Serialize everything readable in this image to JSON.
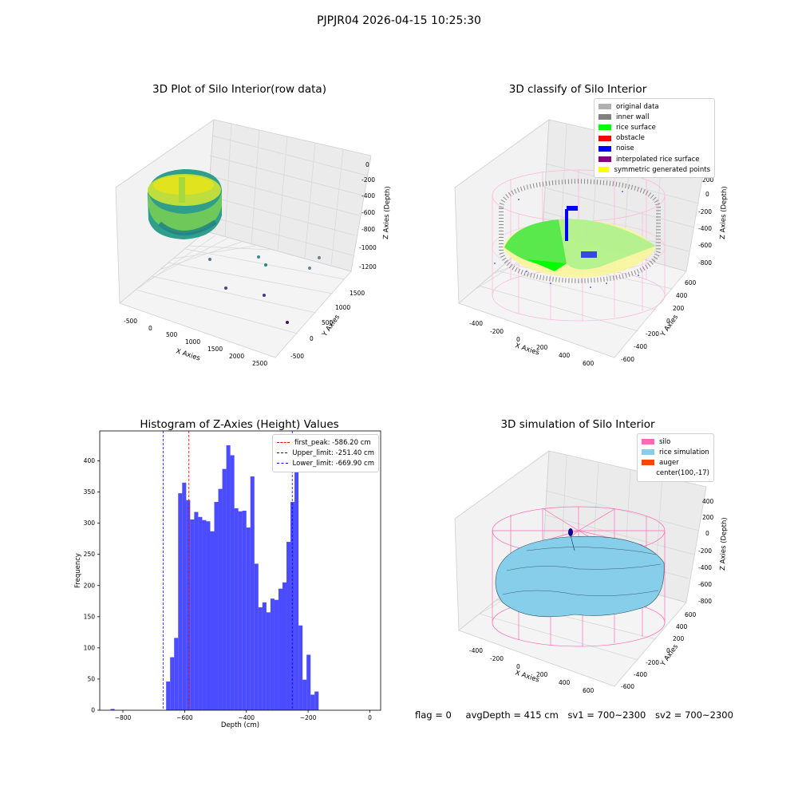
{
  "figure": {
    "suptitle": "PJPJR04 2026-04-15 10:25:30"
  },
  "panels": {
    "raw": {
      "title": "3D Plot of Silo Interior(row data)",
      "xlabel": "X Axies",
      "ylabel": "Y Axies",
      "zlabel": "Z Axies (Depth)",
      "xticks": [
        "-500",
        "0",
        "500",
        "1000",
        "1500",
        "2000",
        "2500"
      ],
      "yticks": [
        "-500",
        "0",
        "500",
        "1000",
        "1500"
      ],
      "zticks": [
        "0",
        "-200",
        "-400",
        "-600",
        "-800",
        "-1000",
        "-1200"
      ]
    },
    "classify": {
      "title": "3D classify of Silo Interior",
      "xlabel": "X Axies",
      "ylabel": "Y Axies",
      "zlabel": "Z Axies (Depth)",
      "xticks": [
        "-400",
        "-200",
        "0",
        "200",
        "400",
        "600"
      ],
      "yticks": [
        "-600",
        "-400",
        "-200",
        "0",
        "200",
        "400",
        "600"
      ],
      "zticks": [
        "200",
        "0",
        "-200",
        "-400",
        "-600",
        "-800"
      ],
      "legend": [
        {
          "label": "original data",
          "color": "#b0b0b0"
        },
        {
          "label": "inner wall",
          "color": "#808080"
        },
        {
          "label": "rice surface",
          "color": "#00ff00"
        },
        {
          "label": "obstacle",
          "color": "#ff0000"
        },
        {
          "label": "noise",
          "color": "#0000ff"
        },
        {
          "label": "interpolated rice surface",
          "color": "#800080"
        },
        {
          "label": "symmetric generated points",
          "color": "#ffff00"
        }
      ]
    },
    "simulation": {
      "title": "3D simulation of Silo Interior",
      "xlabel": "X Axies",
      "ylabel": "Y Axies",
      "zlabel": "Z Axies (Depth)",
      "xticks": [
        "-400",
        "-200",
        "0",
        "200",
        "400",
        "600"
      ],
      "yticks": [
        "-600",
        "-400",
        "-200",
        "0",
        "200",
        "400",
        "600"
      ],
      "zticks": [
        "400",
        "200",
        "0",
        "-200",
        "-400",
        "-600",
        "-800"
      ],
      "legend": [
        {
          "label": "silo",
          "color": "#ff69b4"
        },
        {
          "label": "rice simulation",
          "color": "#87ceeb"
        },
        {
          "label": "auger",
          "color": "#ff4500"
        },
        {
          "label": "center(100,-17)",
          "color": ""
        }
      ]
    }
  },
  "chart_data": {
    "type": "bar",
    "title": "Histogram of Z-Axies (Height) Values",
    "xlabel": "Depth (cm)",
    "ylabel": "Frequency",
    "xlim": [
      -875,
      35
    ],
    "ylim": [
      0,
      448
    ],
    "xticks": [
      -800,
      -600,
      -400,
      -200,
      0
    ],
    "yticks": [
      0,
      50,
      100,
      150,
      200,
      250,
      300,
      350,
      400
    ],
    "bar_color": "#0000ff",
    "bins": {
      "start": -660,
      "width": 13.0,
      "values": [
        46,
        85,
        116,
        348,
        365,
        337,
        306,
        318,
        310,
        305,
        303,
        287,
        334,
        355,
        387,
        425,
        409,
        324,
        319,
        320,
        293,
        375,
        235,
        165,
        173,
        157,
        179,
        177,
        195,
        205,
        270,
        334,
        408,
        136,
        49,
        89,
        25,
        30
      ]
    },
    "outlier_bins": [
      {
        "x": -840,
        "value": 2
      }
    ],
    "lines": [
      {
        "label": "first_peak: -586.20 cm",
        "x": -586.2,
        "color": "#ff0000"
      },
      {
        "label": "Upper_limit: -251.40 cm",
        "x": -251.4,
        "color": "#0000ff"
      },
      {
        "label": "Lower_limit: -669.90 cm",
        "x": -669.9,
        "color": "#0000ff"
      }
    ],
    "legend_position": "top-right"
  },
  "footer": {
    "flag": "flag = 0",
    "avg": "avgDepth = 415 cm",
    "sv1": "sv1 = 700~2300",
    "sv2": "sv2 = 700~2300"
  }
}
